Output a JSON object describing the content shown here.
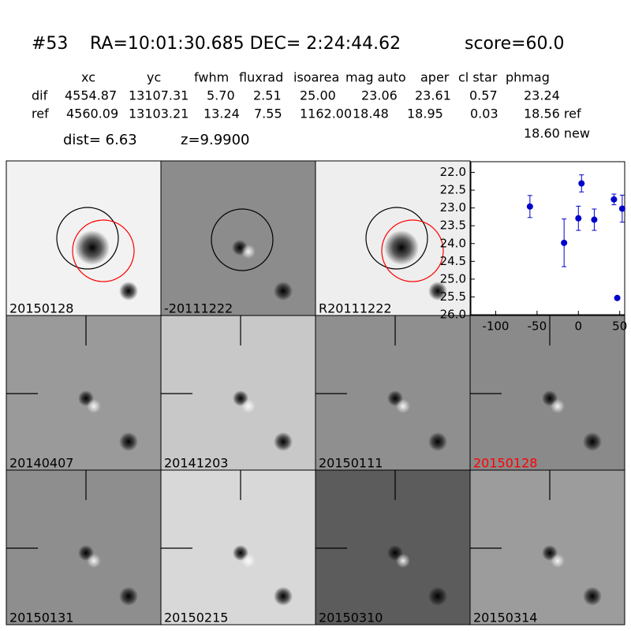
{
  "header": {
    "id": "#53",
    "coords": "RA=10:01:30.685 DEC= 2:24:44.62",
    "score": "score=60.0"
  },
  "table": {
    "columns": [
      "xc",
      "yc",
      "fwhm",
      "fluxrad",
      "isoarea",
      "mag auto",
      "aper",
      "cl star",
      "phmag"
    ],
    "rows": [
      [
        "dif",
        "4554.87",
        "13107.31",
        "5.70",
        "2.51",
        "25.00",
        "23.06",
        "23.61",
        "0.57",
        "23.24"
      ],
      [
        "ref",
        "4560.09",
        "13103.21",
        "13.24",
        "7.55",
        "1162.00",
        "18.48",
        "18.95",
        "0.03",
        "18.56 ref"
      ]
    ],
    "extra": "18.60 new"
  },
  "info": {
    "dist": "dist=  6.63",
    "z": "z=9.9900"
  },
  "panels": [
    {
      "label": "20150128",
      "color": "#000000"
    },
    {
      "label": "-20111222",
      "color": "#000000"
    },
    {
      "label": "R20111222",
      "color": "#000000"
    },
    {
      "label": "20140407",
      "color": "#000000"
    },
    {
      "label": "20141203",
      "color": "#000000"
    },
    {
      "label": "20150111",
      "color": "#000000"
    },
    {
      "label": "20150128",
      "color": "#ff0000"
    },
    {
      "label": "20150131",
      "color": "#000000"
    },
    {
      "label": "20150215",
      "color": "#000000"
    },
    {
      "label": "20150310",
      "color": "#000000"
    },
    {
      "label": "20150314",
      "color": "#000000"
    }
  ],
  "chart_data": {
    "type": "scatter",
    "color": "#0000cc",
    "x": [
      -58.6,
      -17.3,
      0,
      3.8,
      19.2,
      43,
      47,
      53
    ],
    "values": [
      22.96,
      23.98,
      23.29,
      22.31,
      23.33,
      22.76,
      25.53,
      23.02
    ],
    "errors": [
      0.31,
      0.67,
      0.34,
      0.24,
      0.3,
      0.15,
      0.03,
      0.38
    ],
    "xlim": [
      -130,
      56
    ],
    "xticks": [
      -100,
      -50,
      0,
      50
    ],
    "ylim": [
      26.0,
      21.7
    ],
    "inverted_y": true,
    "yticks": [
      {
        "value": 22,
        "label": "22.0"
      },
      {
        "value": 22.5,
        "label": "22.5"
      },
      {
        "value": 23,
        "label": "23.0"
      },
      {
        "value": 23.5,
        "label": "23.5"
      },
      {
        "value": 24,
        "label": "24.0"
      },
      {
        "value": 24.5,
        "label": "24.5"
      },
      {
        "value": 25,
        "label": "25.0"
      },
      {
        "value": 25.5,
        "label": "25.5"
      },
      {
        "value": 26,
        "label": "26.0"
      }
    ]
  }
}
